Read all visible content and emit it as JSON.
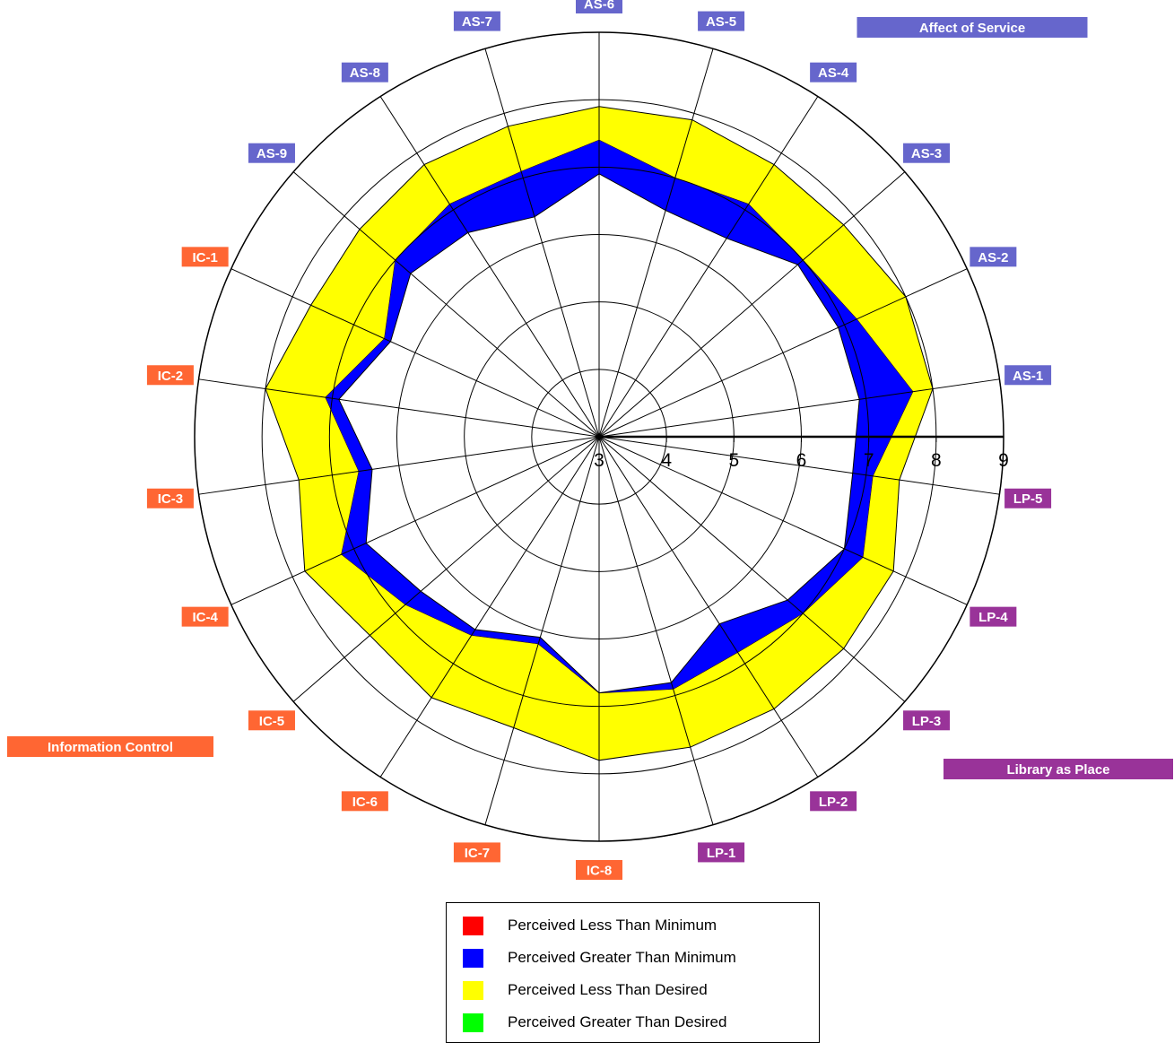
{
  "chart_data": {
    "type": "radar",
    "scale": {
      "min": 3,
      "max": 9,
      "ticks": [
        3,
        4,
        5,
        6,
        7,
        8,
        9
      ]
    },
    "axes": [
      "AS-1",
      "AS-2",
      "AS-3",
      "AS-4",
      "AS-5",
      "AS-6",
      "AS-7",
      "AS-8",
      "AS-9",
      "IC-1",
      "IC-2",
      "IC-3",
      "IC-4",
      "IC-5",
      "IC-6",
      "IC-7",
      "IC-8",
      "LP-1",
      "LP-2",
      "LP-3",
      "LP-4",
      "LP-5"
    ],
    "axis_groups": [
      {
        "name": "Affect of Service",
        "color": "#6666cc",
        "prefix": "AS"
      },
      {
        "name": "Information Control",
        "color": "#ff6633",
        "prefix": "IC"
      },
      {
        "name": "Library as Place",
        "color": "#993399",
        "prefix": "LP"
      }
    ],
    "series": [
      {
        "name": "Minimum",
        "values": [
          6.9,
          6.9,
          6.9,
          6.5,
          6.5,
          6.9,
          6.4,
          6.6,
          6.7,
          6.4,
          6.9,
          6.4,
          6.8,
          6.5,
          6.4,
          6.1,
          6.8,
          6.8,
          6.3,
          6.7,
          7.0,
          6.8
        ]
      },
      {
        "name": "Perceived",
        "values": [
          7.7,
          7.2,
          7.0,
          7.1,
          7.0,
          7.4,
          7.1,
          7.1,
          7.0,
          6.5,
          7.1,
          6.6,
          7.2,
          6.8,
          6.5,
          6.2,
          6.8,
          6.9,
          6.8,
          7.0,
          7.3,
          7.1
        ]
      },
      {
        "name": "Desired",
        "values": [
          8.0,
          8.0,
          7.8,
          7.8,
          7.9,
          7.9,
          7.8,
          7.8,
          7.7,
          7.7,
          8.0,
          7.5,
          7.8,
          7.5,
          7.6,
          7.5,
          7.8,
          7.8,
          7.8,
          7.8,
          7.8,
          7.5
        ]
      }
    ],
    "legend": [
      {
        "label": "Perceived Less Than Minimum",
        "color": "#ff0000"
      },
      {
        "label": "Perceived Greater Than Minimum",
        "color": "#0000ff"
      },
      {
        "label": "Perceived Less Than Desired",
        "color": "#ffff00"
      },
      {
        "label": "Perceived Greater Than Desired",
        "color": "#00ff00"
      }
    ]
  }
}
